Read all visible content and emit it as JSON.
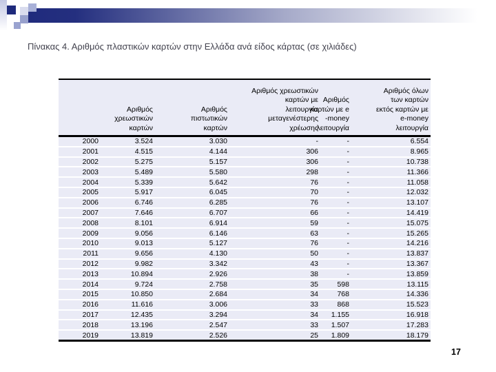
{
  "slide": {
    "title": "Πίνακας 4. Αριθμός πλαστικών καρτών στην Ελλάδα ανά είδος κάρτας (σε χιλιάδες)",
    "page_number": "17"
  },
  "table": {
    "columns": [
      {
        "key": "year",
        "label": ""
      },
      {
        "key": "debit",
        "label": "Αριθμός\nχρεωστικών\nκαρτών"
      },
      {
        "key": "credit",
        "label": "Αριθμός\nπιστωτικών\nκαρτών"
      },
      {
        "key": "delayed_debit",
        "label": "Αριθμός χρεωστικών\nκαρτών με\nλειτουργία\nμεταγενέστερης\nχρέωσης"
      },
      {
        "key": "emoney",
        "label": "Αριθμός\nκαρτών με e\n-money\nλειτουργία"
      },
      {
        "key": "all_cards",
        "label": "Αριθμός όλων\nτων καρτών\nεκτός καρτών με\ne-money\nλειτουργία"
      }
    ],
    "rows": [
      [
        "2000",
        "3.524",
        "3.030",
        "-",
        "-",
        "6.554"
      ],
      [
        "2001",
        "4.515",
        "4.144",
        "306",
        "-",
        "8.965"
      ],
      [
        "2002",
        "5.275",
        "5.157",
        "306",
        "-",
        "10.738"
      ],
      [
        "2003",
        "5.489",
        "5.580",
        "298",
        "-",
        "11.366"
      ],
      [
        "2004",
        "5.339",
        "5.642",
        "76",
        "-",
        "11.058"
      ],
      [
        "2005",
        "5.917",
        "6.045",
        "70",
        "-",
        "12.032"
      ],
      [
        "2006",
        "6.746",
        "6.285",
        "76",
        "-",
        "13.107"
      ],
      [
        "2007",
        "7.646",
        "6.707",
        "66",
        "-",
        "14.419"
      ],
      [
        "2008",
        "8.101",
        "6.914",
        "59",
        "-",
        "15.075"
      ],
      [
        "2009",
        "9.056",
        "6.146",
        "63",
        "-",
        "15.265"
      ],
      [
        "2010",
        "9.013",
        "5.127",
        "76",
        "-",
        "14.216"
      ],
      [
        "2011",
        "9.656",
        "4.130",
        "50",
        "-",
        "13.837"
      ],
      [
        "2012",
        "9.982",
        "3.342",
        "43",
        "-",
        "13.367"
      ],
      [
        "2013",
        "10.894",
        "2.926",
        "38",
        "-",
        "13.859"
      ],
      [
        "2014",
        "9.724",
        "2.758",
        "35",
        "598",
        "13.115"
      ],
      [
        "2015",
        "10.850",
        "2.684",
        "34",
        "768",
        "14.336"
      ],
      [
        "2016",
        "11.616",
        "3.006",
        "33",
        "868",
        "15.523"
      ],
      [
        "2017",
        "12.435",
        "3.294",
        "34",
        "1.155",
        "16.918"
      ],
      [
        "2018",
        "13.196",
        "2.547",
        "33",
        "1.507",
        "17.283"
      ],
      [
        "2019",
        "13.819",
        "2.526",
        "25",
        "1.809",
        "18.179"
      ]
    ]
  },
  "colors": {
    "accent_navy": "#1e2a7c",
    "row_background": "#eaebf6",
    "lavender_medium": "#98a1cd",
    "lavender_light": "#d9dcee",
    "title_text": "#42424e",
    "table_border": "#000000"
  }
}
